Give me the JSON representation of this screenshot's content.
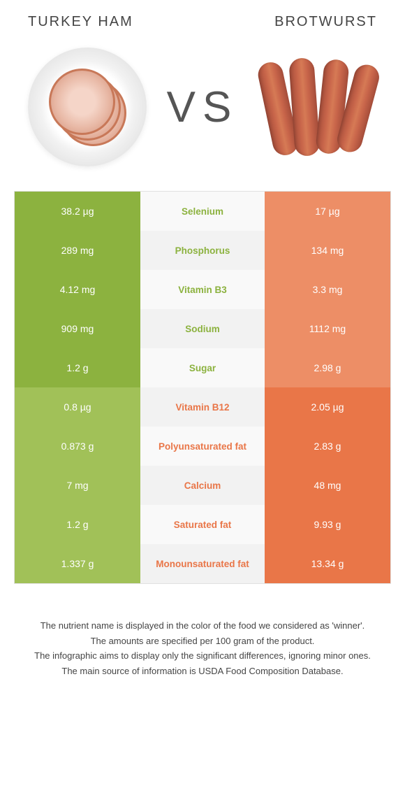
{
  "header": {
    "left_title": "TURKEY HAM",
    "right_title": "BROTWURST"
  },
  "vs_label": "VS",
  "colors": {
    "left_winner_bg": "#8cb23f",
    "left_loser_bg": "#a1c158",
    "right_winner_bg": "#e97648",
    "right_loser_bg": "#ed8e66",
    "mid_left_text": "#8cb23f",
    "mid_right_text": "#e97648",
    "footer_text": "#444444"
  },
  "rows": [
    {
      "nutrient": "Selenium",
      "left": "38.2 µg",
      "right": "17 µg",
      "winner": "left"
    },
    {
      "nutrient": "Phosphorus",
      "left": "289 mg",
      "right": "134 mg",
      "winner": "left"
    },
    {
      "nutrient": "Vitamin B3",
      "left": "4.12 mg",
      "right": "3.3 mg",
      "winner": "left"
    },
    {
      "nutrient": "Sodium",
      "left": "909 mg",
      "right": "1112 mg",
      "winner": "left"
    },
    {
      "nutrient": "Sugar",
      "left": "1.2 g",
      "right": "2.98 g",
      "winner": "left"
    },
    {
      "nutrient": "Vitamin B12",
      "left": "0.8 µg",
      "right": "2.05 µg",
      "winner": "right"
    },
    {
      "nutrient": "Polyunsaturated fat",
      "left": "0.873 g",
      "right": "2.83 g",
      "winner": "right"
    },
    {
      "nutrient": "Calcium",
      "left": "7 mg",
      "right": "48 mg",
      "winner": "right"
    },
    {
      "nutrient": "Saturated fat",
      "left": "1.2 g",
      "right": "9.93 g",
      "winner": "right"
    },
    {
      "nutrient": "Monounsaturated fat",
      "left": "1.337 g",
      "right": "13.34 g",
      "winner": "right"
    }
  ],
  "footer": {
    "line1": "The nutrient name is displayed in the color of the food we considered as 'winner'.",
    "line2": "The amounts are specified per 100 gram of the product.",
    "line3": "The infographic aims to display only the significant differences, ignoring minor ones.",
    "line4": "The main source of information is USDA Food Composition Database."
  }
}
